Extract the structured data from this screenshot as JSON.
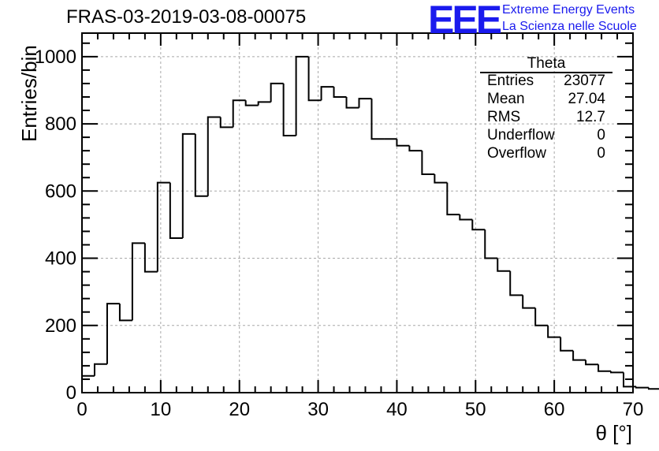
{
  "title": "FRAS-03-2019-03-08-00075",
  "logo": {
    "mark": "EEE",
    "line1": "Extreme Energy Events",
    "line2": "La Scienza nelle Scuole"
  },
  "stats": {
    "title": "Theta",
    "rows": [
      {
        "label": "Entries",
        "value": "23077"
      },
      {
        "label": "Mean",
        "value": "27.04"
      },
      {
        "label": "RMS",
        "value": "12.7"
      },
      {
        "label": "Underflow",
        "value": "0"
      },
      {
        "label": "Overflow",
        "value": "0"
      }
    ]
  },
  "chart_data": {
    "type": "bar",
    "style": "step-histogram",
    "title": "FRAS-03-2019-03-08-00075",
    "xlabel": "θ [°]",
    "ylabel": "Entries/bin",
    "xlim": [
      0,
      70
    ],
    "ylim": [
      0,
      1070
    ],
    "xticks": [
      0,
      10,
      20,
      30,
      40,
      50,
      60,
      70
    ],
    "yticks": [
      0,
      200,
      400,
      600,
      800,
      1000
    ],
    "grid": true,
    "bin_width": 1.6,
    "bin_edges_start": 0,
    "values": [
      50,
      85,
      265,
      215,
      445,
      360,
      625,
      460,
      770,
      585,
      820,
      790,
      870,
      855,
      865,
      920,
      765,
      1000,
      870,
      910,
      880,
      848,
      875,
      755,
      755,
      735,
      720,
      650,
      625,
      530,
      515,
      485,
      400,
      362,
      290,
      252,
      200,
      165,
      125,
      97,
      84,
      64,
      60,
      18,
      15,
      11,
      6,
      3
    ]
  }
}
